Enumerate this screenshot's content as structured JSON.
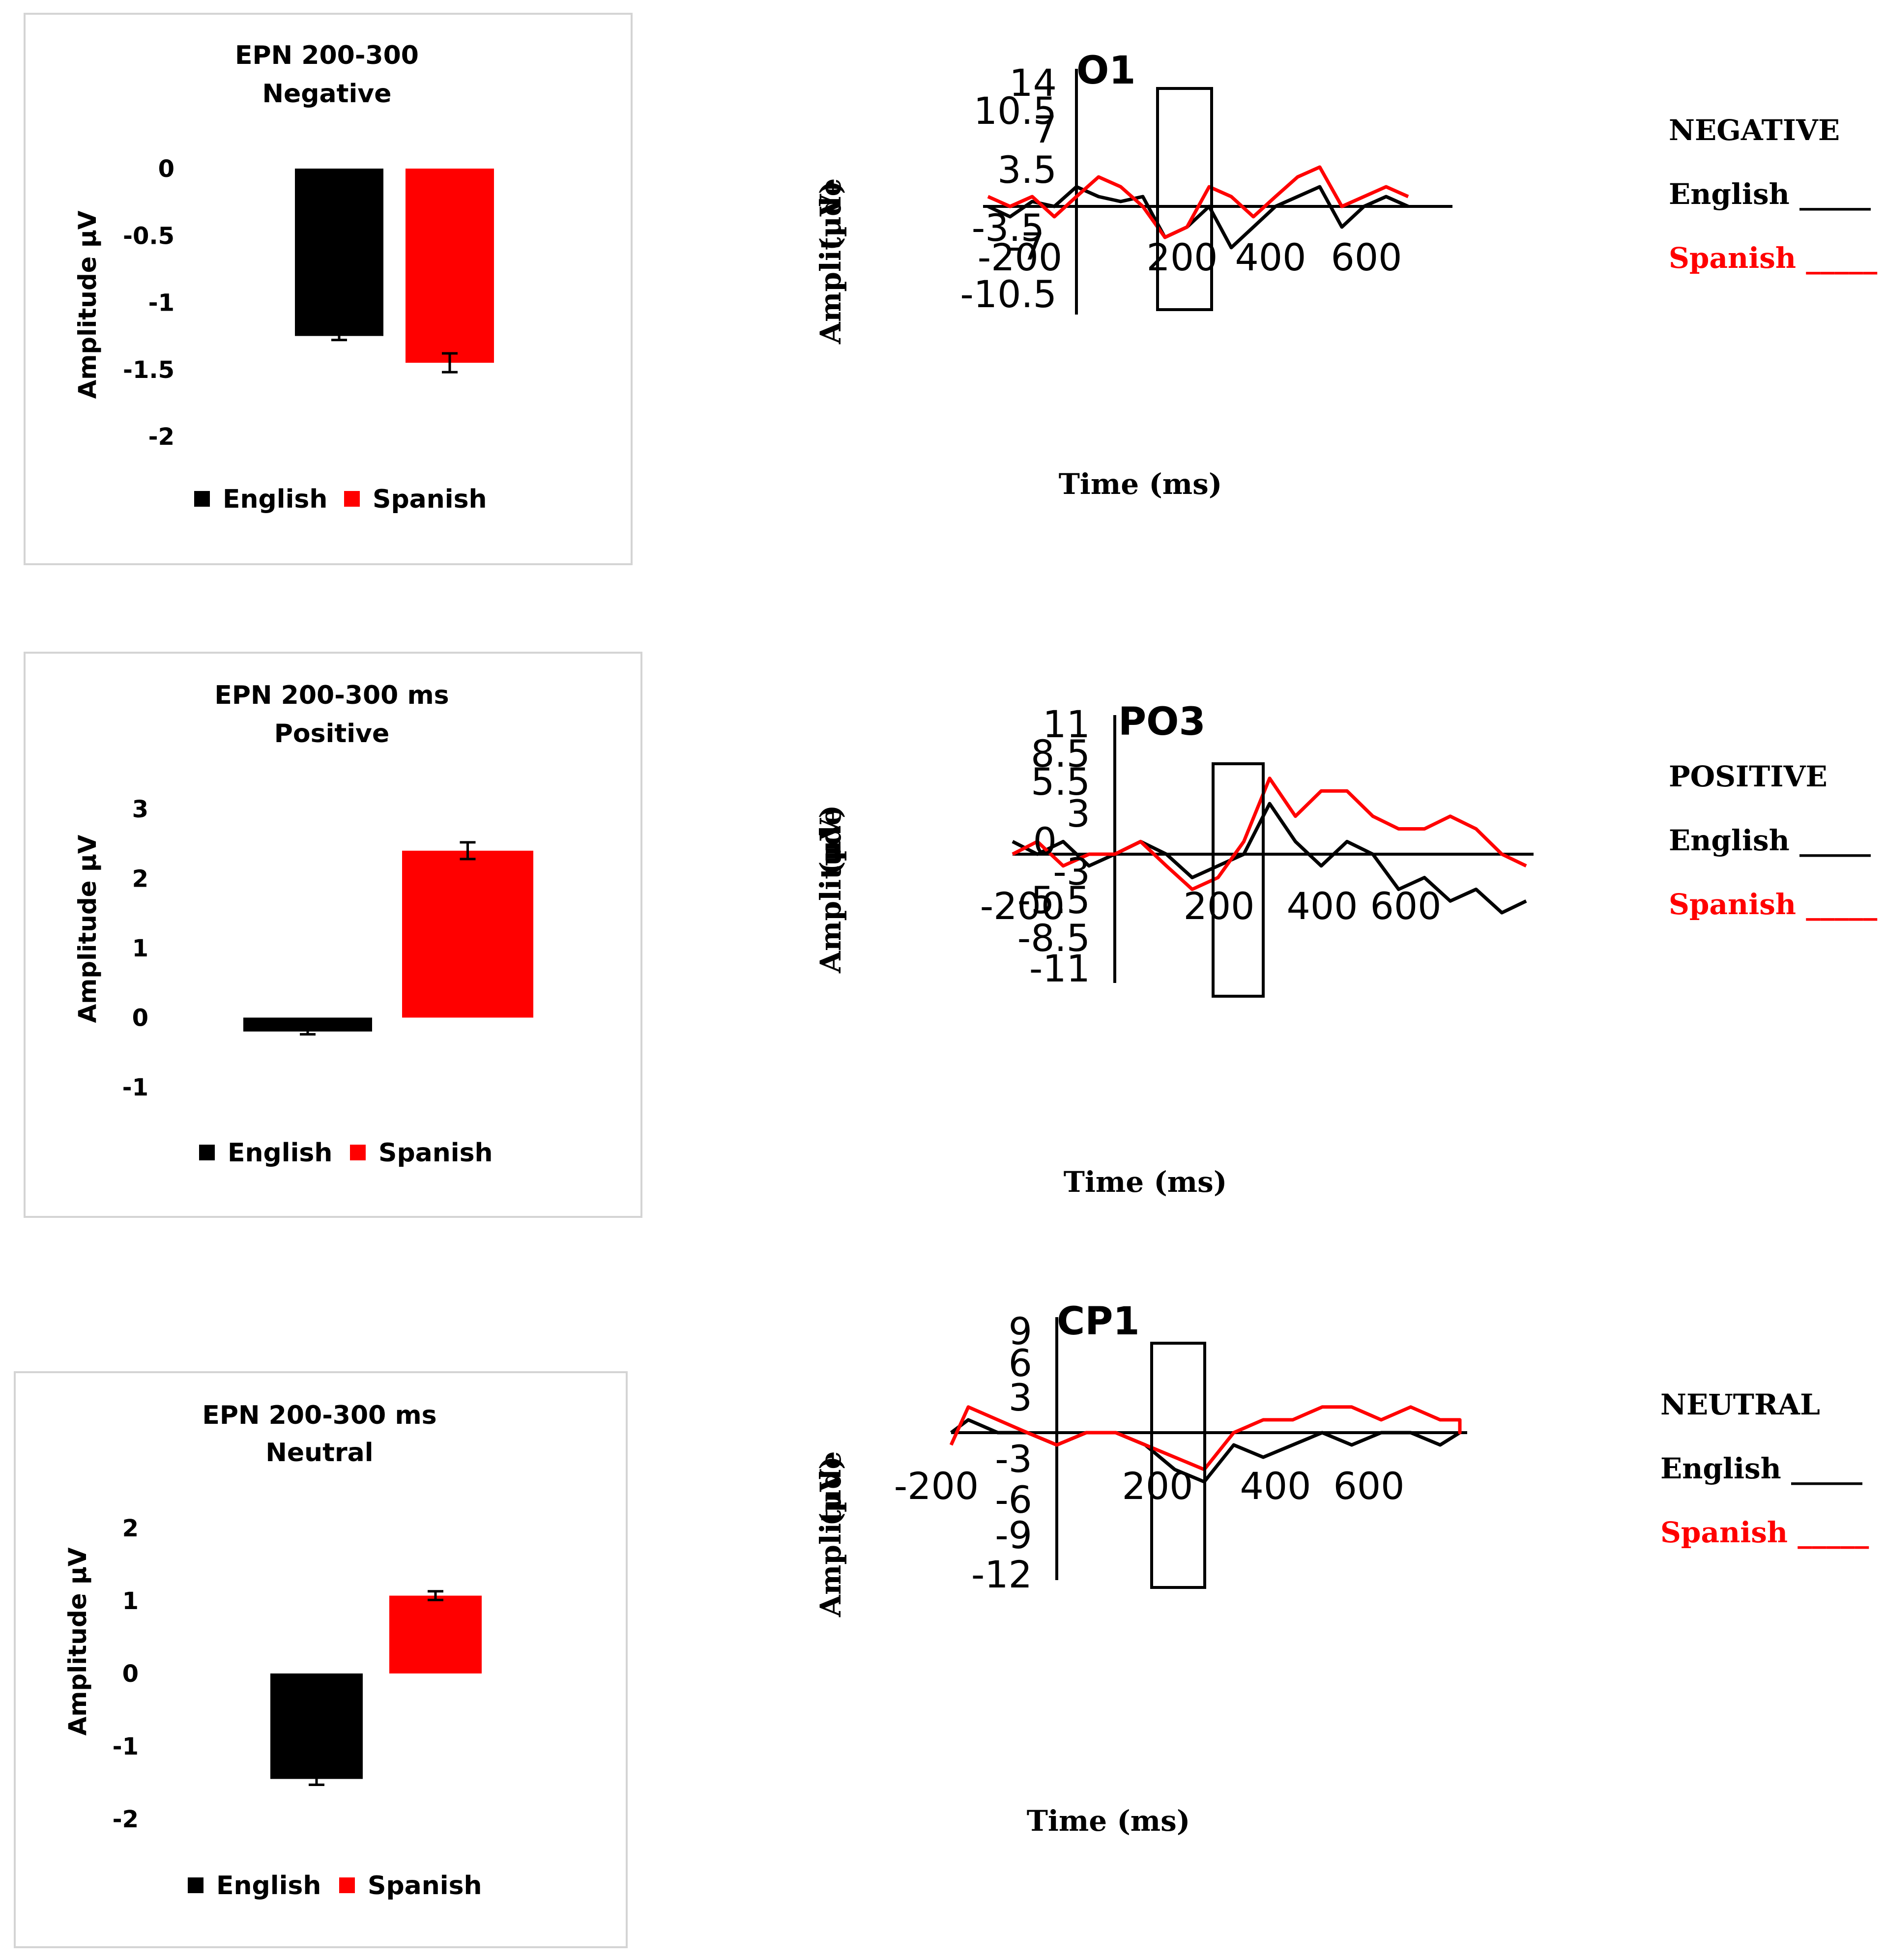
{
  "colors": {
    "english": "#000000",
    "spanish": "#ff0000",
    "frame": "#d4d4d4"
  },
  "chart_data": [
    {
      "type": "bar",
      "title": "EPN 200-300",
      "subtitle": "Negative",
      "ylabel": "Amplitude µV",
      "ylim": [
        -2,
        0
      ],
      "yticks": [
        "0",
        "-0.5",
        "-1",
        "-1.5",
        "-2"
      ],
      "categories": [
        "English",
        "Spanish"
      ],
      "values": [
        -1.25,
        -1.45
      ],
      "errors": [
        0.03,
        0.07
      ],
      "legend": [
        "English",
        "Spanish"
      ],
      "legend_position": "bottom"
    },
    {
      "type": "bar",
      "title": "EPN 200-300 ms",
      "subtitle": "Positive",
      "ylabel": "Amplitude µV",
      "ylim": [
        -1,
        3
      ],
      "yticks": [
        "3",
        "2",
        "1",
        "0",
        "-1"
      ],
      "categories": [
        "English",
        "Spanish"
      ],
      "values": [
        -0.2,
        2.4
      ],
      "errors": [
        0.04,
        0.12
      ],
      "legend": [
        "English",
        "Spanish"
      ],
      "legend_position": "bottom"
    },
    {
      "type": "bar",
      "title": "EPN 200-300 ms",
      "subtitle": "Neutral",
      "ylabel": "Amplitude µV",
      "ylim": [
        -2,
        2
      ],
      "yticks": [
        "2",
        "1",
        "0",
        "-1",
        "-2"
      ],
      "categories": [
        "English",
        "Spanish"
      ],
      "values": [
        -1.45,
        1.07
      ],
      "errors": [
        0.08,
        0.06
      ],
      "legend": [
        "English",
        "Spanish"
      ],
      "legend_position": "bottom"
    },
    {
      "type": "line",
      "title": "O1",
      "ylabel": "Amplitude (µV)",
      "xlabel": "Time (ms)",
      "xlim": [
        -200,
        800
      ],
      "ylim": [
        -10.5,
        14
      ],
      "xticks": [
        "-200",
        "200",
        "400",
        "600"
      ],
      "yticks": [
        "14",
        "10.5",
        "7",
        "3.5",
        "-3.5",
        "-7",
        "-10.5"
      ],
      "window_ms": [
        170,
        290
      ],
      "series": [
        {
          "name": "English",
          "x": [
            -200,
            -150,
            -100,
            -50,
            0,
            50,
            100,
            150,
            200,
            250,
            300,
            350,
            400,
            450,
            500,
            550,
            600,
            650,
            700,
            750
          ],
          "y": [
            0,
            -1,
            0.5,
            0,
            2,
            1,
            0.5,
            1,
            -3,
            -2,
            0,
            -4,
            -2,
            0,
            1,
            2,
            -2,
            0,
            1,
            0
          ]
        },
        {
          "name": "Spanish",
          "x": [
            -200,
            -150,
            -100,
            -50,
            0,
            50,
            100,
            150,
            200,
            250,
            300,
            350,
            400,
            450,
            500,
            550,
            600,
            650,
            700,
            750
          ],
          "y": [
            1,
            0,
            1,
            -1,
            1,
            3,
            2,
            0,
            -3,
            -2,
            2,
            1,
            -1,
            1,
            3,
            4,
            0,
            1,
            2,
            1
          ]
        }
      ],
      "legend_heading": "NEGATIVE",
      "legend": [
        "English _____",
        "Spanish _____"
      ]
    },
    {
      "type": "line",
      "title": "PO3",
      "ylabel": "Amplitude (µV)",
      "xlabel": "Time (ms)",
      "xlim": [
        -200,
        800
      ],
      "ylim": [
        -11,
        11
      ],
      "xticks": [
        "-200",
        "200",
        "400",
        "600"
      ],
      "yticks": [
        "11",
        "8.5",
        "5.5",
        "3",
        "0",
        "-3",
        "-5.5",
        "-8.5",
        "-11"
      ],
      "window_ms": [
        200,
        300
      ],
      "series": [
        {
          "name": "English",
          "x": [
            -200,
            -150,
            -100,
            -50,
            0,
            50,
            100,
            150,
            200,
            250,
            300,
            350,
            400,
            450,
            500,
            550,
            600,
            650,
            700,
            750,
            800
          ],
          "y": [
            1,
            0,
            1,
            -1,
            0,
            1,
            0,
            -2,
            -1,
            0,
            4,
            1,
            -1,
            1,
            0,
            -3,
            -2,
            -4,
            -3,
            -5,
            -4
          ]
        },
        {
          "name": "Spanish",
          "x": [
            -200,
            -150,
            -100,
            -50,
            0,
            50,
            100,
            150,
            200,
            250,
            300,
            350,
            400,
            450,
            500,
            550,
            600,
            650,
            700,
            750,
            800
          ],
          "y": [
            0,
            1,
            -1,
            0,
            0,
            1,
            -1,
            -3,
            -2,
            1,
            6,
            3,
            5,
            5,
            3,
            2,
            2,
            3,
            2,
            0,
            -1
          ]
        }
      ],
      "legend_heading": "POSITIVE",
      "legend": [
        "English _____",
        "Spanish _____"
      ]
    },
    {
      "type": "line",
      "title": "CP1",
      "ylabel": "Amplitude (µV)",
      "xlabel": "Time (ms)",
      "xlim": [
        -200,
        800
      ],
      "ylim": [
        -12,
        9
      ],
      "xticks": [
        "-200",
        "200",
        "400",
        "600"
      ],
      "yticks": [
        "9",
        "6",
        "3",
        "-3",
        "-6",
        "-9",
        "-12"
      ],
      "window_ms": [
        180,
        280
      ],
      "series": [
        {
          "name": "English",
          "x": [
            -200,
            -150,
            -100,
            -50,
            0,
            50,
            100,
            150,
            200,
            250,
            300,
            350,
            400,
            450,
            500,
            550,
            600,
            650,
            700,
            750,
            800
          ],
          "y": [
            0,
            1,
            0,
            0,
            -1,
            0,
            0,
            -1,
            -3,
            -4,
            -1,
            -2,
            -1,
            0,
            -1,
            0,
            0,
            -1,
            0,
            0,
            0
          ]
        },
        {
          "name": "Spanish",
          "x": [
            -200,
            -150,
            -100,
            -50,
            0,
            50,
            100,
            150,
            200,
            250,
            300,
            350,
            400,
            450,
            500,
            550,
            600,
            650,
            700,
            750,
            800
          ],
          "y": [
            -1,
            2,
            1,
            0,
            -1,
            0,
            0,
            -1,
            -2,
            -3,
            0,
            1,
            1,
            2,
            2,
            1,
            2,
            1,
            1,
            0,
            1
          ]
        }
      ],
      "legend_heading": "NEUTRAL",
      "legend": [
        "English _____",
        "Spanish _____"
      ]
    }
  ]
}
